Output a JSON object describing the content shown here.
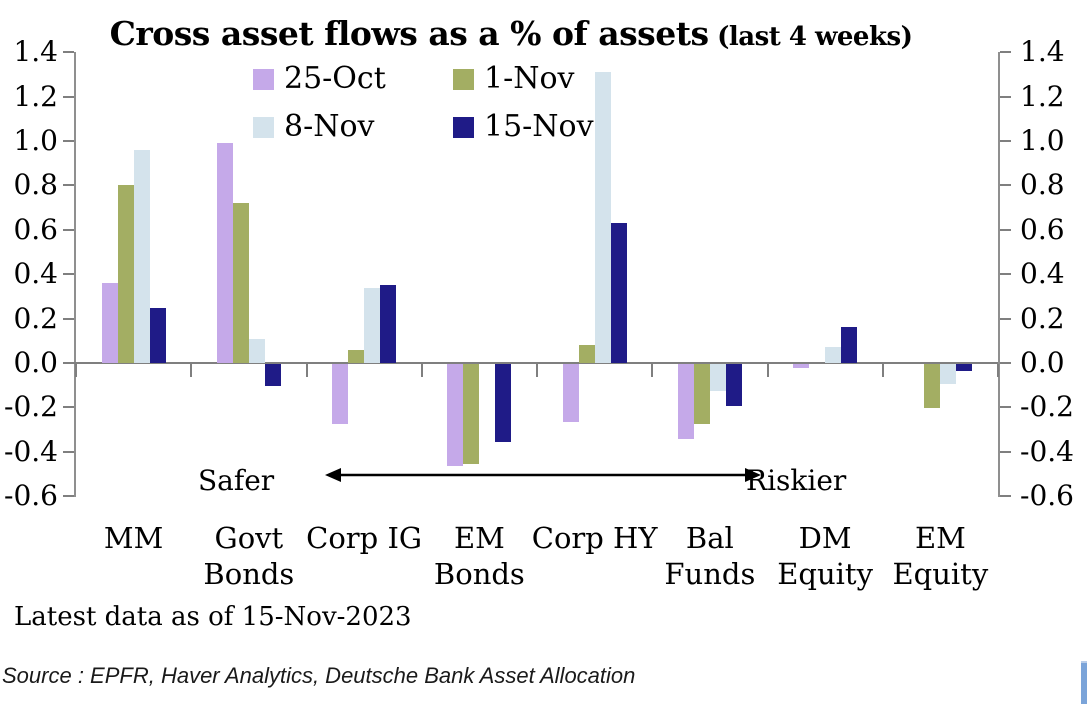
{
  "title": {
    "main": "Cross asset flows as a % of assets",
    "suffix": " (last 4 weeks)"
  },
  "legend": [
    {
      "label": "25-Oct",
      "color": "#c5a9e9"
    },
    {
      "label": "1-Nov",
      "color": "#a3ae63"
    },
    {
      "label": "8-Nov",
      "color": "#d4e3ec"
    },
    {
      "label": "15-Nov",
      "color": "#1f1b87"
    }
  ],
  "axis": {
    "tick_labels": [
      "1.4",
      "1.2",
      "1.0",
      "0.8",
      "0.6",
      "0.4",
      "0.2",
      "0.0",
      "-0.2",
      "-0.4",
      "-0.6"
    ],
    "max": 1.4,
    "min": -0.6,
    "step": 0.2
  },
  "annotations": {
    "safer": "Safer",
    "riskier": "Riskier"
  },
  "footer": {
    "latest": "Latest data as of 15-Nov-2023",
    "source": "Source : EPFR, Haver Analytics, Deutsche Bank Asset Allocation"
  },
  "decor": {
    "edge_mark_color": "#7ba4d9",
    "axis_color": "#8f8f8f",
    "zero_line_color": "#7f7f7f"
  },
  "chart_data": {
    "type": "bar",
    "title": "Cross asset flows as a % of assets (last 4 weeks)",
    "categories": [
      "MM",
      "Govt Bonds",
      "Corp IG",
      "EM Bonds",
      "Corp HY",
      "Bal Funds",
      "DM Equity",
      "EM Equity"
    ],
    "categories_lines": [
      [
        "MM"
      ],
      [
        "Govt",
        "Bonds"
      ],
      [
        "Corp IG"
      ],
      [
        "EM",
        "Bonds"
      ],
      [
        "Corp HY"
      ],
      [
        "Bal",
        "Funds"
      ],
      [
        "DM",
        "Equity"
      ],
      [
        "EM",
        "Equity"
      ]
    ],
    "series": [
      {
        "name": "25-Oct",
        "color": "#c5a9e9",
        "values": [
          0.36,
          0.99,
          -0.27,
          -0.46,
          -0.26,
          -0.34,
          -0.02,
          0.0
        ]
      },
      {
        "name": "1-Nov",
        "color": "#a3ae63",
        "values": [
          0.8,
          0.72,
          0.06,
          -0.45,
          0.08,
          -0.27,
          0.0,
          -0.2
        ]
      },
      {
        "name": "8-Nov",
        "color": "#d4e3ec",
        "values": [
          0.96,
          0.11,
          0.34,
          0.0,
          1.31,
          -0.12,
          0.07,
          -0.09
        ]
      },
      {
        "name": "15-Nov",
        "color": "#1f1b87",
        "values": [
          0.25,
          -0.1,
          0.35,
          -0.35,
          0.63,
          -0.19,
          0.16,
          -0.03
        ]
      }
    ],
    "ylabel": "",
    "xlabel": "",
    "ylim": [
      -0.6,
      1.4
    ],
    "grid": false,
    "legend_position": "top-center"
  }
}
